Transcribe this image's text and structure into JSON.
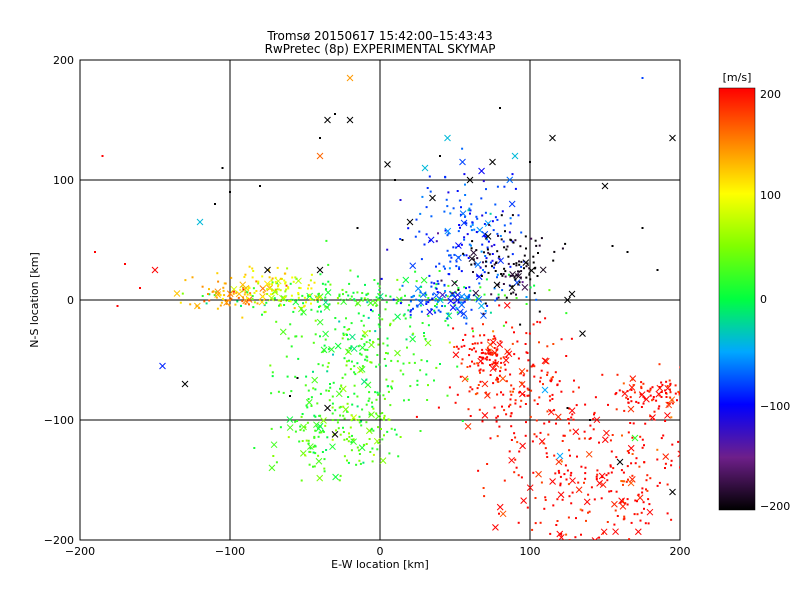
{
  "chart_data": {
    "type": "scatter",
    "title": "Tromsø 20150617 15:42:00–15:43:43",
    "subtitle": "RwPretec (8p) EXPERIMENTAL SKYMAP",
    "xlabel": "E-W location [km]",
    "ylabel": "N-S location [km]",
    "xlim": [
      -200,
      200
    ],
    "ylim": [
      -200,
      200
    ],
    "x_ticks": [
      "−200",
      "−100",
      "0",
      "100",
      "200"
    ],
    "y_ticks": [
      "−200",
      "−100",
      "0",
      "100",
      "200"
    ],
    "grid": true,
    "colorbar": {
      "unit": "[m/s]",
      "range": [
        -200,
        200
      ],
      "tick_labels": [
        "200",
        "100",
        "0",
        "−100",
        "−200"
      ]
    },
    "point_groups": [
      {
        "center": [
          -3,
          2
        ],
        "spread": [
          50,
          8
        ],
        "velocity": 10
      },
      {
        "center": [
          -10,
          -45
        ],
        "spread": [
          30,
          28
        ],
        "velocity": 20
      },
      {
        "center": [
          -95,
          5
        ],
        "spread": [
          15,
          8
        ],
        "velocity": 135
      },
      {
        "center": [
          -65,
          8
        ],
        "spread": [
          12,
          8
        ],
        "velocity": 90
      },
      {
        "center": [
          45,
          0
        ],
        "spread": [
          18,
          8
        ],
        "velocity": -80
      },
      {
        "center": [
          60,
          55
        ],
        "spread": [
          18,
          25
        ],
        "velocity": -85
      },
      {
        "center": [
          85,
          30
        ],
        "spread": [
          15,
          15
        ],
        "velocity": -200
      },
      {
        "center": [
          150,
          -150
        ],
        "spread": [
          35,
          40
        ],
        "velocity": 200
      },
      {
        "center": [
          185,
          -78
        ],
        "spread": [
          15,
          8
        ],
        "velocity": 200
      },
      {
        "center": [
          90,
          -75
        ],
        "spread": [
          20,
          25
        ],
        "velocity": 200
      },
      {
        "center": [
          -30,
          -110
        ],
        "spread": [
          25,
          20
        ],
        "velocity": 30
      },
      {
        "center": [
          70,
          -45
        ],
        "spread": [
          10,
          10
        ],
        "velocity": 200
      }
    ],
    "x_markers": [
      [
        -145,
        -55,
        -90
      ],
      [
        -130,
        -70,
        -200
      ],
      [
        -120,
        65,
        -40
      ],
      [
        -35,
        150,
        -200
      ],
      [
        -20,
        150,
        -200
      ],
      [
        -40,
        120,
        160
      ],
      [
        5,
        113,
        -200
      ],
      [
        30,
        110,
        -40
      ],
      [
        45,
        135,
        -40
      ],
      [
        55,
        115,
        -80
      ],
      [
        90,
        120,
        -40
      ],
      [
        115,
        135,
        -200
      ],
      [
        150,
        95,
        -200
      ],
      [
        195,
        135,
        -200
      ],
      [
        -35,
        -90,
        -200
      ],
      [
        -30,
        -112,
        -200
      ],
      [
        120,
        -130,
        -50
      ],
      [
        110,
        -75,
        -50
      ],
      [
        170,
        -115,
        20
      ],
      [
        160,
        -135,
        -200
      ],
      [
        195,
        -160,
        -200
      ],
      [
        -40,
        25,
        -200
      ],
      [
        125,
        0,
        -200
      ],
      [
        128,
        5,
        -200
      ],
      [
        20,
        65,
        -200
      ],
      [
        35,
        85,
        -200
      ],
      [
        60,
        100,
        -200
      ],
      [
        75,
        115,
        -200
      ],
      [
        -20,
        185,
        140
      ],
      [
        135,
        -28,
        -200
      ],
      [
        -75,
        25,
        -200
      ],
      [
        -150,
        25,
        200
      ]
    ],
    "dot_markers": [
      [
        -80,
        95,
        -200
      ],
      [
        -110,
        80,
        -200
      ],
      [
        -105,
        110,
        -200
      ],
      [
        -40,
        135,
        -200
      ],
      [
        -30,
        155,
        -200
      ],
      [
        80,
        160,
        -200
      ],
      [
        10,
        100,
        -200
      ],
      [
        40,
        120,
        -200
      ],
      [
        100,
        115,
        -200
      ],
      [
        155,
        45,
        -200
      ],
      [
        175,
        60,
        -200
      ],
      [
        165,
        40,
        -200
      ],
      [
        185,
        25,
        -200
      ],
      [
        -15,
        60,
        -200
      ],
      [
        15,
        50,
        -200
      ],
      [
        140,
        -100,
        -200
      ],
      [
        -60,
        -80,
        -200
      ],
      [
        -55,
        -65,
        -200
      ],
      [
        125,
        -90,
        -200
      ],
      [
        105,
        20,
        -200
      ],
      [
        -185,
        120,
        200
      ],
      [
        -190,
        40,
        200
      ],
      [
        -175,
        -5,
        200
      ],
      [
        -160,
        10,
        200
      ],
      [
        -170,
        30,
        200
      ],
      [
        175,
        185,
        -80
      ],
      [
        -100,
        90,
        -200
      ]
    ]
  }
}
